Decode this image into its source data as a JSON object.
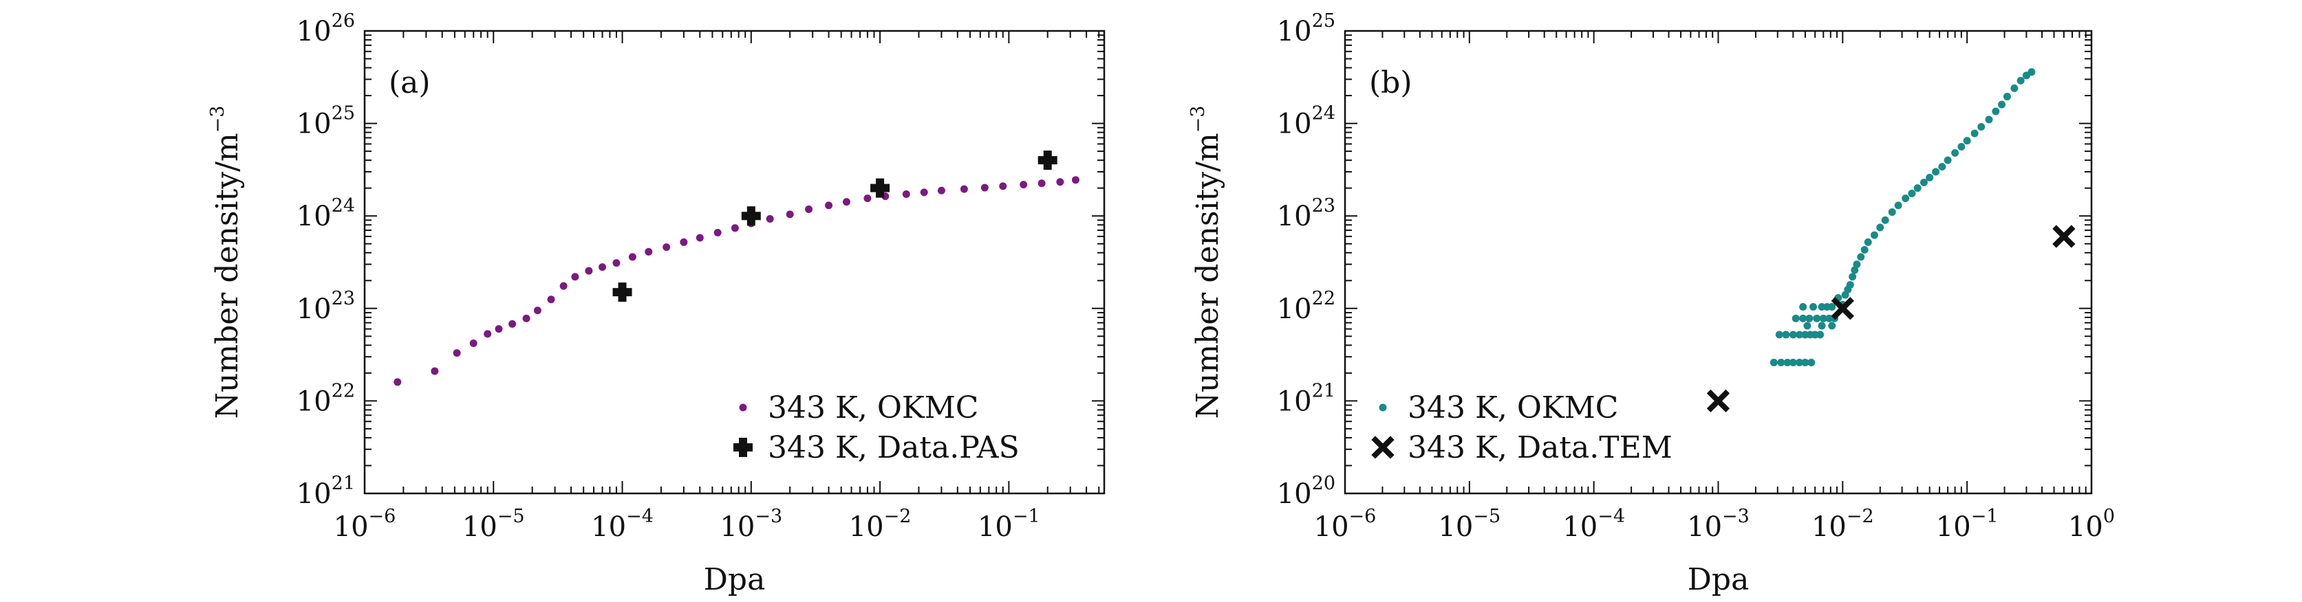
{
  "chart_data": [
    {
      "type": "scatter",
      "panel": "(a)",
      "xlabel": "Dpa",
      "ylabel": "Number density/m",
      "ylabel_exp": "−3",
      "x_scale": "log",
      "y_scale": "log",
      "xlim": [
        1e-06,
        0.55
      ],
      "ylim": [
        1e+21,
        1e+26
      ],
      "x_ticks": [
        {
          "base": "10",
          "exp": "−6",
          "value": 1e-06
        },
        {
          "base": "10",
          "exp": "−5",
          "value": 1e-05
        },
        {
          "base": "10",
          "exp": "−4",
          "value": 0.0001
        },
        {
          "base": "10",
          "exp": "−3",
          "value": 0.001
        },
        {
          "base": "10",
          "exp": "−2",
          "value": 0.01
        },
        {
          "base": "10",
          "exp": "−1",
          "value": 0.1
        }
      ],
      "y_ticks": [
        {
          "base": "10",
          "exp": "21",
          "value": 1e+21
        },
        {
          "base": "10",
          "exp": "22",
          "value": 1e+22
        },
        {
          "base": "10",
          "exp": "23",
          "value": 1e+23
        },
        {
          "base": "10",
          "exp": "24",
          "value": 1e+24
        },
        {
          "base": "10",
          "exp": "25",
          "value": 1e+25
        },
        {
          "base": "10",
          "exp": "26",
          "value": 1e+26
        }
      ],
      "legend_position": "bottom-right",
      "series": [
        {
          "name": "343 K, OKMC",
          "marker": "dot",
          "color": "#7b1a80",
          "x": [
            1.8e-06,
            3.5e-06,
            5.2e-06,
            7e-06,
            9e-06,
            1.1e-05,
            1.4e-05,
            1.8e-05,
            2.2e-05,
            2.8e-05,
            3.5e-05,
            4.3e-05,
            5.5e-05,
            7e-05,
            9e-05,
            0.00012,
            0.00016,
            0.00022,
            0.0003,
            0.0004,
            0.00055,
            0.00075,
            0.001,
            0.0014,
            0.002,
            0.0028,
            0.004,
            0.0055,
            0.008,
            0.011,
            0.016,
            0.022,
            0.03,
            0.045,
            0.065,
            0.09,
            0.13,
            0.18,
            0.25,
            0.33
          ],
          "y": [
            1.6e+22,
            2.1e+22,
            3.3e+22,
            4.2e+22,
            5.3e+22,
            6e+22,
            6.8e+22,
            7.8e+22,
            9.5e+22,
            1.25e+23,
            1.75e+23,
            2.2e+23,
            2.55e+23,
            2.8e+23,
            3.1e+23,
            3.6e+23,
            4.1e+23,
            4.6e+23,
            5.2e+23,
            5.8e+23,
            6.6e+23,
            7.4e+23,
            8.3e+23,
            9.3e+23,
            1.04e+24,
            1.18e+24,
            1.3e+24,
            1.42e+24,
            1.55e+24,
            1.63e+24,
            1.72e+24,
            1.8e+24,
            1.88e+24,
            1.95e+24,
            2.02e+24,
            2.1e+24,
            2.18e+24,
            2.25e+24,
            2.33e+24,
            2.45e+24
          ]
        },
        {
          "name": "343 K, Data.PAS",
          "marker": "plus",
          "color": "#111111",
          "x": [
            0.0001,
            0.001,
            0.01,
            0.2
          ],
          "y": [
            1.5e+23,
            1e+24,
            2e+24,
            4e+24
          ]
        }
      ]
    },
    {
      "type": "scatter",
      "panel": "(b)",
      "xlabel": "Dpa",
      "ylabel": "Number density/m",
      "ylabel_exp": "−3",
      "x_scale": "log",
      "y_scale": "log",
      "xlim": [
        1e-06,
        1
      ],
      "ylim": [
        1e+20,
        1e+25
      ],
      "x_ticks": [
        {
          "base": "10",
          "exp": "−6",
          "value": 1e-06
        },
        {
          "base": "10",
          "exp": "−5",
          "value": 1e-05
        },
        {
          "base": "10",
          "exp": "−4",
          "value": 0.0001
        },
        {
          "base": "10",
          "exp": "−3",
          "value": 0.001
        },
        {
          "base": "10",
          "exp": "−2",
          "value": 0.01
        },
        {
          "base": "10",
          "exp": "−1",
          "value": 0.1
        },
        {
          "base": "10",
          "exp": "0",
          "value": 1
        }
      ],
      "y_ticks": [
        {
          "base": "10",
          "exp": "20",
          "value": 1e+20
        },
        {
          "base": "10",
          "exp": "21",
          "value": 1e+21
        },
        {
          "base": "10",
          "exp": "22",
          "value": 1e+22
        },
        {
          "base": "10",
          "exp": "23",
          "value": 1e+23
        },
        {
          "base": "10",
          "exp": "24",
          "value": 1e+24
        },
        {
          "base": "10",
          "exp": "25",
          "value": 1e+25
        }
      ],
      "legend_position": "bottom-left",
      "series": [
        {
          "name": "343 K, OKMC",
          "marker": "dot",
          "color": "#1a8a88",
          "x": [
            0.0028,
            0.0032,
            0.0036,
            0.004,
            0.0045,
            0.005,
            0.0056,
            0.0031,
            0.0035,
            0.004,
            0.0045,
            0.005,
            0.0055,
            0.006,
            0.0066,
            0.0042,
            0.0048,
            0.0054,
            0.0062,
            0.007,
            0.0078,
            0.0086,
            0.0048,
            0.0058,
            0.0068,
            0.0075,
            0.0082,
            0.0052,
            0.0068,
            0.0082,
            0.0092,
            0.01,
            0.0105,
            0.011,
            0.0115,
            0.012,
            0.0125,
            0.013,
            0.014,
            0.015,
            0.016,
            0.018,
            0.02,
            0.022,
            0.025,
            0.028,
            0.032,
            0.036,
            0.04,
            0.045,
            0.05,
            0.056,
            0.063,
            0.07,
            0.08,
            0.09,
            0.1,
            0.115,
            0.13,
            0.15,
            0.17,
            0.19,
            0.21,
            0.24,
            0.27,
            0.3,
            0.33
          ],
          "y": [
            2.6e+21,
            2.6e+21,
            2.6e+21,
            2.6e+21,
            2.6e+21,
            2.6e+21,
            2.6e+21,
            5.2e+21,
            5.2e+21,
            5.2e+21,
            5.2e+21,
            5.2e+21,
            5.2e+21,
            5.2e+21,
            5.2e+21,
            7.8e+21,
            7.8e+21,
            7.8e+21,
            7.8e+21,
            7.8e+21,
            7.8e+21,
            7.8e+21,
            1.04e+22,
            1.04e+22,
            1.04e+22,
            1.04e+22,
            1.04e+22,
            6.5e+21,
            6.5e+21,
            6.5e+21,
            1.3e+22,
            1.1e+22,
            1.4e+22,
            1.6e+22,
            1.8e+22,
            2.2e+22,
            2.6e+22,
            3e+22,
            3.6e+22,
            4.3e+22,
            5.2e+22,
            6.2e+22,
            7.5e+22,
            9e+22,
            1.1e+23,
            1.3e+23,
            1.55e+23,
            1.75e+23,
            2e+23,
            2.3e+23,
            2.6e+23,
            3e+23,
            3.4e+23,
            4e+23,
            4.8e+23,
            5.6e+23,
            6.5e+23,
            7.8e+23,
            9.2e+23,
            1.1e+24,
            1.35e+24,
            1.6e+24,
            1.95e+24,
            2.4e+24,
            2.9e+24,
            3.3e+24,
            3.6e+24
          ]
        },
        {
          "name": "343 K, Data.TEM",
          "marker": "cross",
          "color": "#111111",
          "x": [
            0.001,
            0.01,
            0.6
          ],
          "y": [
            1e+21,
            1e+22,
            6e+22
          ]
        }
      ]
    }
  ]
}
